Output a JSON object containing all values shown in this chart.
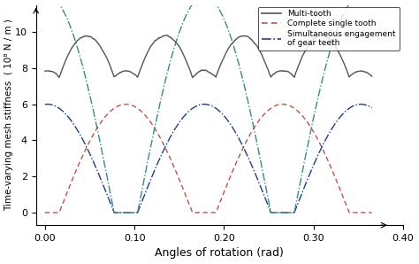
{
  "title": "",
  "xlabel": "Angles of rotation (rad)",
  "ylabel": "Time-varying mesh stiffness  ( 10⁸ N / m )",
  "xlim": [
    -0.005,
    0.38
  ],
  "ylim": [
    -0.5,
    11.0
  ],
  "xticks": [
    0.0,
    0.1,
    0.2,
    0.3,
    0.4
  ],
  "yticks": [
    0,
    2,
    4,
    6,
    8,
    10
  ],
  "multi_tooth_color": "#555555",
  "single_tooth_color": "#c0504d",
  "engagement_color1": "#1f3e82",
  "engagement_color2": "#3a8a8a",
  "period": 0.175,
  "figsize": [
    4.74,
    2.98
  ],
  "dpi": 100
}
